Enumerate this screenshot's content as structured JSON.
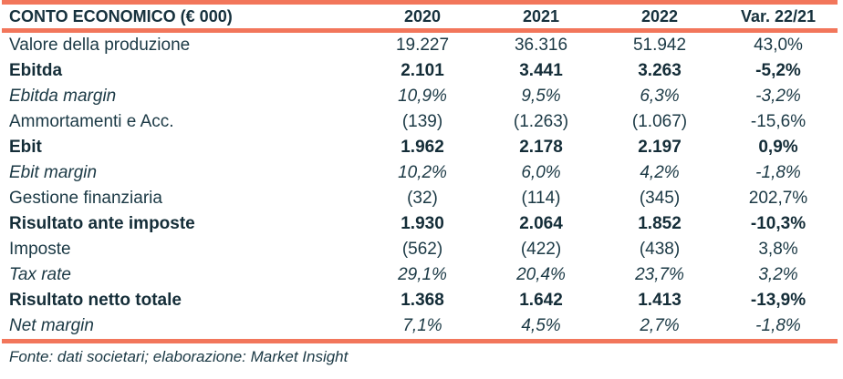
{
  "table": {
    "title": "CONTO ECONOMICO (€ 000)",
    "columns": [
      "2020",
      "2021",
      "2022",
      "Var. 22/21"
    ],
    "rows": [
      {
        "label": "Valore della produzione",
        "style": "regular",
        "values": [
          "19.227",
          "36.316",
          "51.942",
          "43,0%"
        ]
      },
      {
        "label": "Ebitda",
        "style": "bold",
        "values": [
          "2.101",
          "3.441",
          "3.263",
          "-5,2%"
        ]
      },
      {
        "label": "Ebitda margin",
        "style": "italic",
        "values": [
          "10,9%",
          "9,5%",
          "6,3%",
          "-3,2%"
        ]
      },
      {
        "label": "Ammortamenti e Acc.",
        "style": "regular",
        "values": [
          "(139)",
          "(1.263)",
          "(1.067)",
          "-15,6%"
        ]
      },
      {
        "label": "Ebit",
        "style": "bold",
        "values": [
          "1.962",
          "2.178",
          "2.197",
          "0,9%"
        ]
      },
      {
        "label": "Ebit margin",
        "style": "italic",
        "values": [
          "10,2%",
          "6,0%",
          "4,2%",
          "-1,8%"
        ]
      },
      {
        "label": "Gestione finanziaria",
        "style": "regular",
        "values": [
          "(32)",
          "(114)",
          "(345)",
          "202,7%"
        ]
      },
      {
        "label": "Risultato ante imposte",
        "style": "bold",
        "values": [
          "1.930",
          "2.064",
          "1.852",
          "-10,3%"
        ]
      },
      {
        "label": "Imposte",
        "style": "regular",
        "values": [
          "(562)",
          "(422)",
          "(438)",
          "3,8%"
        ]
      },
      {
        "label": "Tax rate",
        "style": "italic",
        "values": [
          "29,1%",
          "20,4%",
          "23,7%",
          "3,2%"
        ]
      },
      {
        "label": "Risultato netto totale",
        "style": "bold",
        "values": [
          "1.368",
          "1.642",
          "1.413",
          "-13,9%"
        ]
      },
      {
        "label": "Net margin",
        "style": "italic",
        "values": [
          "7,1%",
          "4,5%",
          "2,7%",
          "-1,8%"
        ]
      }
    ],
    "footer": "Fonte: dati societari; elaborazione: Market Insight"
  },
  "colors": {
    "accent_orange": "#f2765b",
    "text_dark_teal": "#1b3945"
  }
}
